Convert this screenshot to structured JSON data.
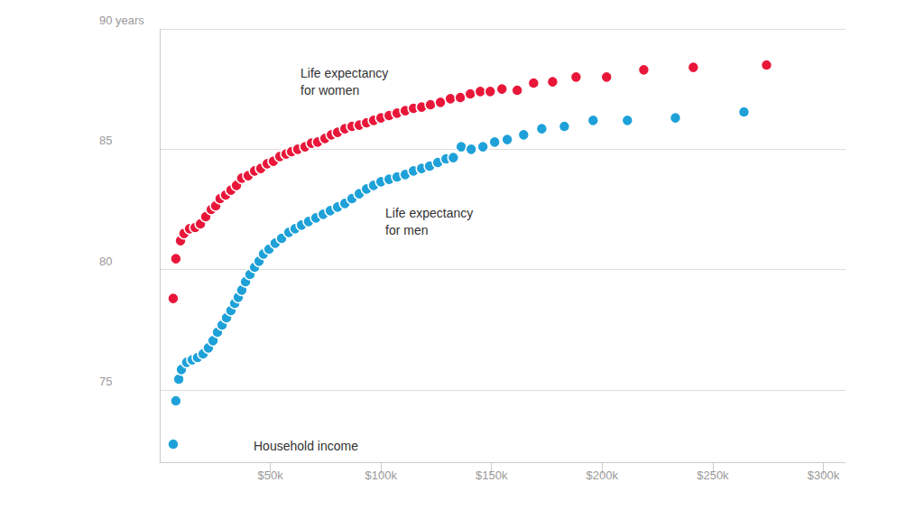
{
  "chart_data": {
    "type": "scatter",
    "xlabel": "Household income",
    "xlim": [
      0,
      310
    ],
    "xticks": [
      {
        "value": 50,
        "label": "$50k"
      },
      {
        "value": 100,
        "label": "$100k"
      },
      {
        "value": 150,
        "label": "$150k"
      },
      {
        "value": 200,
        "label": "$200k"
      },
      {
        "value": 250,
        "label": "$250k"
      },
      {
        "value": 300,
        "label": "$300k"
      }
    ],
    "ylim": [
      72,
      90
    ],
    "yticks": [
      75,
      80,
      85,
      {
        "value": 90,
        "label": "90 years"
      }
    ],
    "grid": true,
    "marker": "circle",
    "series": [
      {
        "name": "Life expectancy for women",
        "color": "#e8173a",
        "x": [
          6.1,
          7.3,
          9.4,
          11,
          13.5,
          16,
          18.4,
          20.8,
          23.3,
          25.3,
          27.3,
          29.8,
          32.2,
          34.7,
          37.1,
          40,
          42.9,
          45.7,
          48.6,
          51.4,
          54.3,
          57.1,
          59.6,
          62.4,
          65.7,
          68.6,
          71.4,
          74.7,
          77.6,
          80.4,
          83.7,
          86.9,
          90.2,
          93.5,
          96.7,
          100,
          103.7,
          107.3,
          111,
          114.7,
          118.4,
          122.4,
          126.9,
          131.4,
          135.9,
          140.4,
          144.9,
          149.4,
          154.7,
          161.6,
          169,
          177.6,
          188.2,
          202,
          218.8,
          241.2,
          274.3
        ],
        "values": [
          78.8,
          80.45,
          81.2,
          81.5,
          81.7,
          81.75,
          81.9,
          82.2,
          82.5,
          82.65,
          82.95,
          83.1,
          83.3,
          83.5,
          83.8,
          83.9,
          84.1,
          84.2,
          84.4,
          84.5,
          84.7,
          84.8,
          84.9,
          85.0,
          85.1,
          85.25,
          85.3,
          85.45,
          85.6,
          85.7,
          85.85,
          85.95,
          86.0,
          86.1,
          86.2,
          86.3,
          86.4,
          86.5,
          86.6,
          86.7,
          86.75,
          86.85,
          86.95,
          87.1,
          87.15,
          87.3,
          87.4,
          87.4,
          87.5,
          87.45,
          87.75,
          87.8,
          88.0,
          88.0,
          88.3,
          88.4,
          88.5
        ]
      },
      {
        "name": "Life expectancy for men",
        "color": "#1ea1d9",
        "x": [
          6.1,
          7.3,
          8.6,
          9.8,
          12.2,
          14.7,
          17.1,
          19.6,
          22,
          24.1,
          26.1,
          28.2,
          30.2,
          32.2,
          33.9,
          35.5,
          37.1,
          38.8,
          40.8,
          42.9,
          44.9,
          46.9,
          49.4,
          52.2,
          55.1,
          58.4,
          61.2,
          64.1,
          67.3,
          70.6,
          73.9,
          77.1,
          80.4,
          83.7,
          86.9,
          90.2,
          93.5,
          96.7,
          100,
          103.7,
          107.3,
          111,
          114.7,
          118.4,
          122,
          125.7,
          129.4,
          132.7,
          136.3,
          140.8,
          146.1,
          151.4,
          157.1,
          164.5,
          172.7,
          182.9,
          195.9,
          211.4,
          233.1,
          264.1
        ],
        "values": [
          72.75,
          74.55,
          75.45,
          75.85,
          76.15,
          76.25,
          76.35,
          76.5,
          76.75,
          77.05,
          77.4,
          77.7,
          78.0,
          78.3,
          78.6,
          78.85,
          79.15,
          79.5,
          79.8,
          80.1,
          80.35,
          80.65,
          80.85,
          81.1,
          81.3,
          81.55,
          81.7,
          81.85,
          82.0,
          82.15,
          82.3,
          82.45,
          82.6,
          82.75,
          82.95,
          83.15,
          83.35,
          83.5,
          83.65,
          83.75,
          83.85,
          83.95,
          84.1,
          84.2,
          84.3,
          84.45,
          84.6,
          84.65,
          85.1,
          85.0,
          85.1,
          85.3,
          85.4,
          85.6,
          85.85,
          85.95,
          86.2,
          86.2,
          86.3,
          86.55
        ]
      }
    ]
  }
}
